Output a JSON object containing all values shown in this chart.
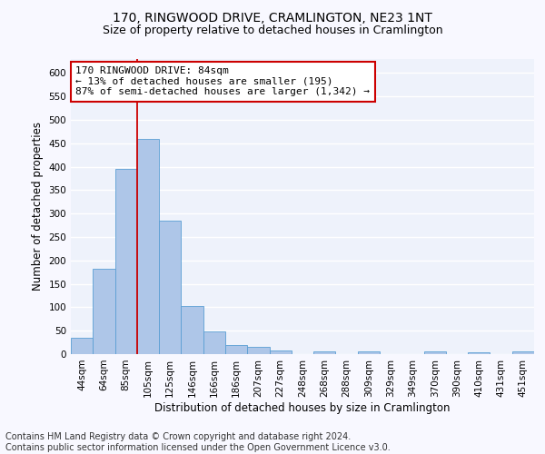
{
  "title_line1": "170, RINGWOOD DRIVE, CRAMLINGTON, NE23 1NT",
  "title_line2": "Size of property relative to detached houses in Cramlington",
  "xlabel": "Distribution of detached houses by size in Cramlington",
  "ylabel": "Number of detached properties",
  "categories": [
    "44sqm",
    "64sqm",
    "85sqm",
    "105sqm",
    "125sqm",
    "146sqm",
    "166sqm",
    "186sqm",
    "207sqm",
    "227sqm",
    "248sqm",
    "268sqm",
    "288sqm",
    "309sqm",
    "329sqm",
    "349sqm",
    "370sqm",
    "390sqm",
    "410sqm",
    "431sqm",
    "451sqm"
  ],
  "values": [
    35,
    182,
    395,
    460,
    285,
    103,
    48,
    20,
    15,
    8,
    0,
    5,
    0,
    5,
    0,
    0,
    5,
    0,
    3,
    0,
    5
  ],
  "bar_color": "#aec6e8",
  "bar_edge_color": "#5a9fd4",
  "annotation_line1": "170 RINGWOOD DRIVE: 84sqm",
  "annotation_line2": "← 13% of detached houses are smaller (195)",
  "annotation_line3": "87% of semi-detached houses are larger (1,342) →",
  "vline_x_index": 2,
  "vline_color": "#cc0000",
  "annotation_box_edge": "#cc0000",
  "ylim": [
    0,
    630
  ],
  "yticks": [
    0,
    50,
    100,
    150,
    200,
    250,
    300,
    350,
    400,
    450,
    500,
    550,
    600
  ],
  "footer_line1": "Contains HM Land Registry data © Crown copyright and database right 2024.",
  "footer_line2": "Contains public sector information licensed under the Open Government Licence v3.0.",
  "fig_facecolor": "#f8f8ff",
  "ax_facecolor": "#eef2fb",
  "grid_color": "#ffffff",
  "title_fontsize": 10,
  "subtitle_fontsize": 9,
  "axis_label_fontsize": 8.5,
  "tick_fontsize": 7.5,
  "annotation_fontsize": 8,
  "footer_fontsize": 7
}
